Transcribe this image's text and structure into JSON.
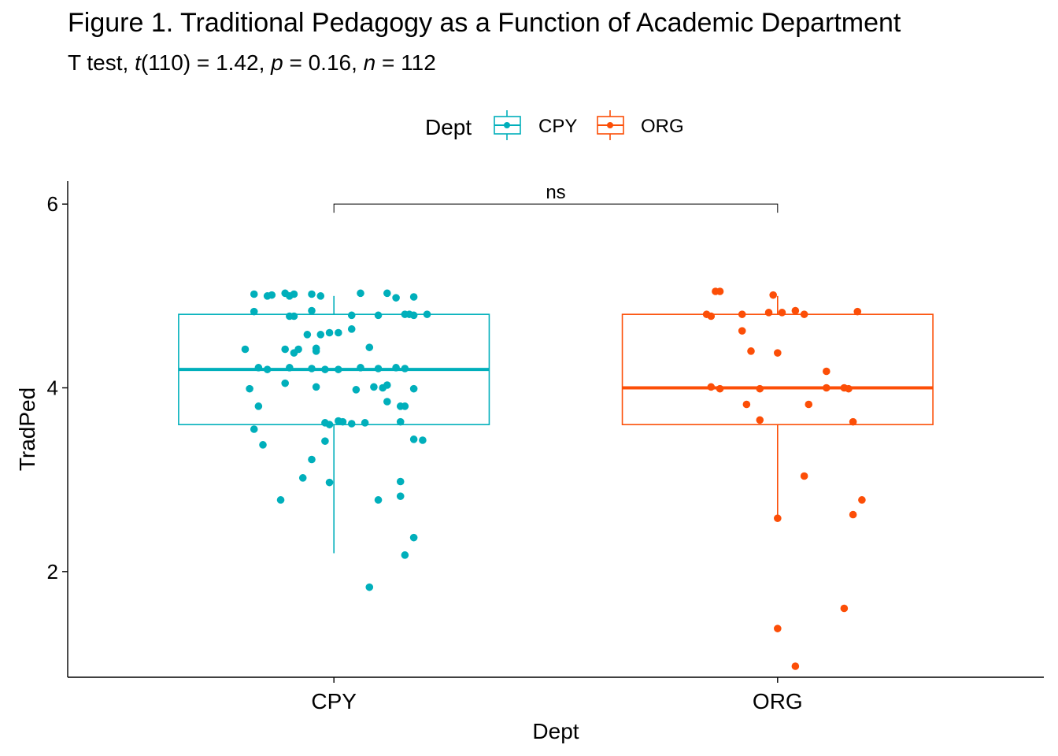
{
  "title": "Figure 1. Traditional Pedagogy as a Function of Academic Department",
  "subtitle": {
    "test": "T test, ",
    "t_symbol": "t",
    "df": "(110)",
    "t_value": " = 1.42, ",
    "p_symbol": "p",
    "p_value": " = 0.16, ",
    "n_symbol": "n",
    "n_value": " = 112"
  },
  "chart_data": {
    "type": "boxplot",
    "xlabel": "Dept",
    "ylabel": "TradPed",
    "ylim": [
      0.85,
      6.25
    ],
    "yticks": [
      2,
      4,
      6
    ],
    "legend": {
      "title": "Dept",
      "position": "top",
      "entries": [
        "CPY",
        "ORG"
      ]
    },
    "significance": {
      "label": "ns",
      "y": 6.0,
      "between": [
        "CPY",
        "ORG"
      ]
    },
    "categories": [
      "CPY",
      "ORG"
    ],
    "series": [
      {
        "name": "CPY",
        "color": "#00AFBB",
        "box": {
          "min": 2.2,
          "q1": 3.6,
          "median": 4.2,
          "q3": 4.8,
          "max": 5.0
        },
        "points": [
          [
            -0.18,
            5.02
          ],
          [
            -0.15,
            5.0
          ],
          [
            -0.14,
            5.01
          ],
          [
            -0.11,
            5.03
          ],
          [
            -0.1,
            5.0
          ],
          [
            -0.09,
            5.02
          ],
          [
            -0.05,
            5.02
          ],
          [
            -0.03,
            5.0
          ],
          [
            0.06,
            5.03
          ],
          [
            0.12,
            5.03
          ],
          [
            0.14,
            4.98
          ],
          [
            0.18,
            4.99
          ],
          [
            -0.18,
            4.83
          ],
          [
            -0.1,
            4.78
          ],
          [
            -0.09,
            4.78
          ],
          [
            -0.05,
            4.84
          ],
          [
            0.04,
            4.79
          ],
          [
            0.1,
            4.79
          ],
          [
            0.16,
            4.8
          ],
          [
            0.17,
            4.8
          ],
          [
            0.18,
            4.79
          ],
          [
            0.21,
            4.8
          ],
          [
            -0.06,
            4.58
          ],
          [
            -0.03,
            4.58
          ],
          [
            -0.01,
            4.6
          ],
          [
            0.01,
            4.6
          ],
          [
            0.04,
            4.64
          ],
          [
            -0.2,
            4.42
          ],
          [
            -0.11,
            4.42
          ],
          [
            -0.08,
            4.42
          ],
          [
            -0.04,
            4.43
          ],
          [
            -0.09,
            4.38
          ],
          [
            -0.04,
            4.4
          ],
          [
            0.08,
            4.44
          ],
          [
            -0.17,
            4.22
          ],
          [
            -0.15,
            4.2
          ],
          [
            -0.1,
            4.22
          ],
          [
            -0.05,
            4.21
          ],
          [
            -0.02,
            4.2
          ],
          [
            0.01,
            4.2
          ],
          [
            0.06,
            4.22
          ],
          [
            0.1,
            4.21
          ],
          [
            0.14,
            4.22
          ],
          [
            0.16,
            4.21
          ],
          [
            -0.11,
            4.05
          ],
          [
            -0.04,
            4.01
          ],
          [
            0.05,
            3.98
          ],
          [
            0.09,
            4.01
          ],
          [
            0.11,
            4.0
          ],
          [
            0.12,
            4.03
          ],
          [
            0.18,
            3.99
          ],
          [
            -0.19,
            3.99
          ],
          [
            -0.17,
            3.8
          ],
          [
            0.12,
            3.85
          ],
          [
            0.15,
            3.8
          ],
          [
            0.16,
            3.8
          ],
          [
            -0.02,
            3.62
          ],
          [
            0.01,
            3.64
          ],
          [
            0.02,
            3.63
          ],
          [
            0.04,
            3.61
          ],
          [
            -0.01,
            3.6
          ],
          [
            0.07,
            3.62
          ],
          [
            0.15,
            3.63
          ],
          [
            -0.18,
            3.55
          ],
          [
            -0.16,
            3.38
          ],
          [
            -0.02,
            3.42
          ],
          [
            0.18,
            3.44
          ],
          [
            0.2,
            3.43
          ],
          [
            -0.05,
            3.22
          ],
          [
            -0.07,
            3.02
          ],
          [
            -0.01,
            2.97
          ],
          [
            0.15,
            2.98
          ],
          [
            -0.12,
            2.78
          ],
          [
            0.1,
            2.78
          ],
          [
            0.15,
            2.82
          ],
          [
            0.18,
            2.37
          ],
          [
            0.16,
            2.18
          ],
          [
            0.08,
            1.83
          ]
        ]
      },
      {
        "name": "ORG",
        "color": "#FC4E07",
        "box": {
          "min": 2.6,
          "q1": 3.6,
          "median": 4.0,
          "q3": 4.8,
          "max": 5.0
        },
        "points": [
          [
            -0.14,
            5.05
          ],
          [
            -0.13,
            5.05
          ],
          [
            -0.01,
            5.01
          ],
          [
            -0.16,
            4.8
          ],
          [
            -0.15,
            4.78
          ],
          [
            -0.08,
            4.8
          ],
          [
            -0.02,
            4.82
          ],
          [
            0.01,
            4.82
          ],
          [
            0.04,
            4.84
          ],
          [
            0.06,
            4.8
          ],
          [
            0.18,
            4.83
          ],
          [
            -0.08,
            4.62
          ],
          [
            -0.06,
            4.4
          ],
          [
            0.0,
            4.38
          ],
          [
            0.11,
            4.18
          ],
          [
            -0.15,
            4.01
          ],
          [
            -0.13,
            3.99
          ],
          [
            -0.04,
            3.99
          ],
          [
            0.11,
            4.0
          ],
          [
            0.15,
            4.0
          ],
          [
            0.16,
            3.99
          ],
          [
            -0.07,
            3.82
          ],
          [
            0.07,
            3.82
          ],
          [
            -0.04,
            3.65
          ],
          [
            0.17,
            3.63
          ],
          [
            0.06,
            3.04
          ],
          [
            0.19,
            2.78
          ],
          [
            0.0,
            2.58
          ],
          [
            0.17,
            2.62
          ],
          [
            0.15,
            1.6
          ],
          [
            0.0,
            1.38
          ],
          [
            0.04,
            0.97
          ]
        ]
      }
    ]
  }
}
